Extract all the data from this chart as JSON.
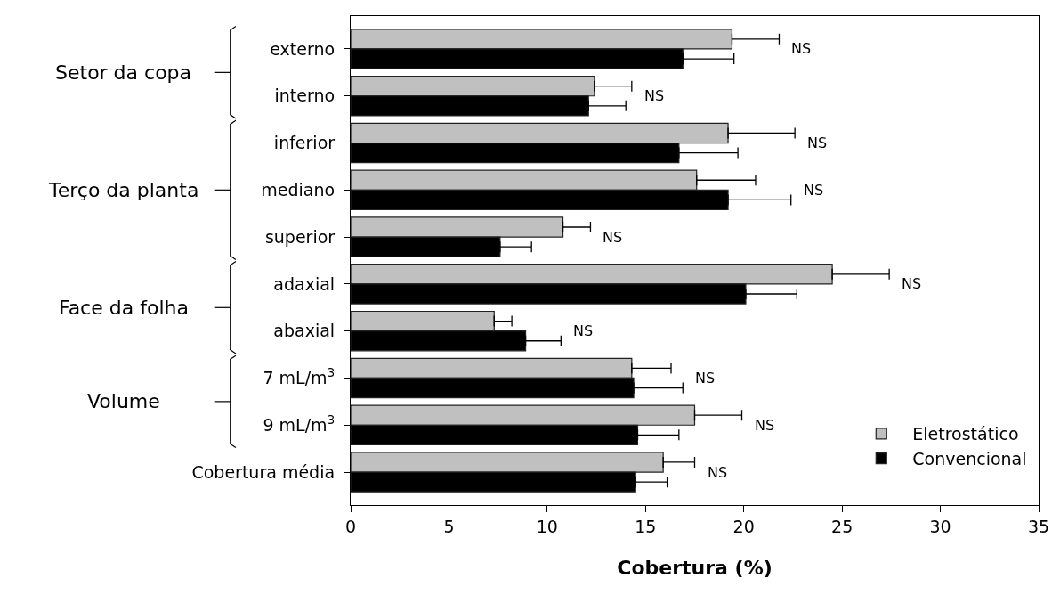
{
  "chart_data": {
    "type": "bar",
    "orientation": "horizontal",
    "xlabel": "Cobertura (%)",
    "categories": [
      "externo",
      "interno",
      "inferior",
      "mediano",
      "superior",
      "adaxial",
      "abaxial",
      "7 mL/m$^{3}$",
      "9 mL/m$^{3}$",
      "Cobertura média"
    ],
    "series": [
      {
        "name": "Eletrostático",
        "color": "#c0c0c0",
        "values": [
          19.4,
          12.4,
          19.2,
          17.6,
          10.8,
          24.5,
          7.3,
          14.3,
          17.5,
          15.9
        ],
        "errors": [
          [
            19.4,
            21.8
          ],
          [
            12.4,
            14.3
          ],
          [
            19.2,
            22.6
          ],
          [
            17.6,
            20.6
          ],
          [
            10.8,
            12.2
          ],
          [
            24.5,
            27.4
          ],
          [
            7.3,
            8.2
          ],
          [
            14.3,
            16.3
          ],
          [
            17.5,
            19.9
          ],
          [
            15.9,
            17.5
          ]
        ]
      },
      {
        "name": "Convencional",
        "color": "#000000",
        "values": [
          16.9,
          12.1,
          16.7,
          19.2,
          7.6,
          20.1,
          8.9,
          14.4,
          14.6,
          14.5
        ],
        "errors": [
          [
            16.9,
            19.5
          ],
          [
            12.1,
            14.0
          ],
          [
            16.7,
            19.7
          ],
          [
            19.2,
            22.4
          ],
          [
            7.6,
            9.2
          ],
          [
            20.1,
            22.7
          ],
          [
            8.9,
            10.7
          ],
          [
            14.4,
            16.9
          ],
          [
            14.6,
            16.7
          ],
          [
            14.5,
            16.1
          ]
        ]
      }
    ],
    "xlim": [
      0,
      35
    ],
    "xticks": [
      0,
      5,
      10,
      15,
      20,
      25,
      30,
      35
    ],
    "grid": false,
    "legend": "bottom right",
    "annotations": [
      "Setor da copa",
      "Terço da planta",
      "Face da folha",
      "Volume",
      "NS",
      "NS",
      "NS",
      "NS",
      "NS",
      "NS",
      "NS",
      "NS",
      "NS",
      "NS"
    ]
  }
}
